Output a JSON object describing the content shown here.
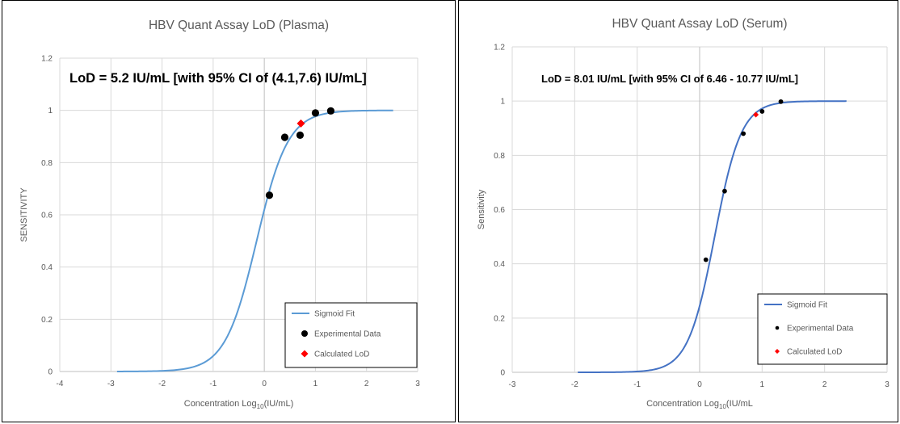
{
  "chart_data": [
    {
      "type": "scatter",
      "title": "HBV Quant Assay LoD (Plasma)",
      "xlabel": "Concentration Log",
      "xlabel_sub": "10",
      "xlabel_suffix": "(IU/mL)",
      "ylabel": "SENSITIVITY",
      "annotation": "LoD = 5.2 IU/mL [with 95% CI of (4.1,7.6) IU/mL]",
      "xlim": [
        -4,
        3
      ],
      "ylim": [
        0,
        1.2
      ],
      "xticks": [
        -4,
        -3,
        -2,
        -1,
        0,
        1,
        2,
        3
      ],
      "yticks": [
        0,
        0.2,
        0.4,
        0.6,
        0.8,
        1,
        1.2
      ],
      "xtick_labels": [
        "-4",
        "-3",
        "-2",
        "-1",
        "0",
        "1",
        "2",
        "3"
      ],
      "ytick_labels": [
        "0",
        "0.2",
        "0.4",
        "0.6",
        "0.8",
        "1",
        "1.2"
      ],
      "grid": true,
      "legend_position": "bottom-right",
      "fit": {
        "mid": -0.15,
        "slope": 3.25,
        "x_range": [
          -2.88,
          2.52
        ]
      },
      "series": [
        {
          "name": "Sigmoid Fit",
          "kind": "line",
          "color": "#5B9BD5"
        },
        {
          "name": "Experimental Data",
          "kind": "point",
          "color": "#000000",
          "points": [
            [
              0.1,
              0.675
            ],
            [
              0.4,
              0.897
            ],
            [
              0.7,
              0.905
            ],
            [
              1.0,
              0.99
            ],
            [
              1.3,
              0.998
            ]
          ]
        },
        {
          "name": "Calculated LoD",
          "kind": "diamond",
          "color": "#FF0000",
          "points": [
            [
              0.716,
              0.95
            ]
          ]
        }
      ]
    },
    {
      "type": "scatter",
      "title": "HBV Quant Assay LoD (Serum)",
      "xlabel": "Concentration Log",
      "xlabel_sub": "10",
      "xlabel_suffix": "(IU/mL",
      "ylabel": "Sensitivity",
      "annotation": "LoD = 8.01 IU/mL [with 95% CI of 6.46 - 10.77 IU/mL]",
      "xlim": [
        -3,
        3
      ],
      "ylim": [
        0,
        1.2
      ],
      "xticks": [
        -3,
        -2,
        -1,
        0,
        1,
        2,
        3
      ],
      "yticks": [
        0,
        0.2,
        0.4,
        0.6,
        0.8,
        1,
        1.2
      ],
      "xtick_labels": [
        "-3",
        "-2",
        "-1",
        "0",
        "1",
        "2",
        "3"
      ],
      "ytick_labels": [
        "0",
        "0.2",
        "0.4",
        "0.6",
        "0.8",
        "1",
        "1.2"
      ],
      "grid": true,
      "legend_position": "bottom-right",
      "fit": {
        "mid": 0.24,
        "slope": 4.7,
        "x_range": [
          -1.95,
          2.35
        ]
      },
      "series": [
        {
          "name": "Sigmoid Fit",
          "kind": "line",
          "color": "#4472C4"
        },
        {
          "name": "Experimental Data",
          "kind": "point",
          "color": "#000000",
          "points": [
            [
              0.1,
              0.415
            ],
            [
              0.4,
              0.668
            ],
            [
              0.7,
              0.88
            ],
            [
              1.0,
              0.962
            ],
            [
              1.3,
              0.998
            ]
          ]
        },
        {
          "name": "Calculated LoD",
          "kind": "diamond",
          "color": "#FF0000",
          "points": [
            [
              0.9,
              0.95
            ]
          ]
        }
      ]
    }
  ]
}
